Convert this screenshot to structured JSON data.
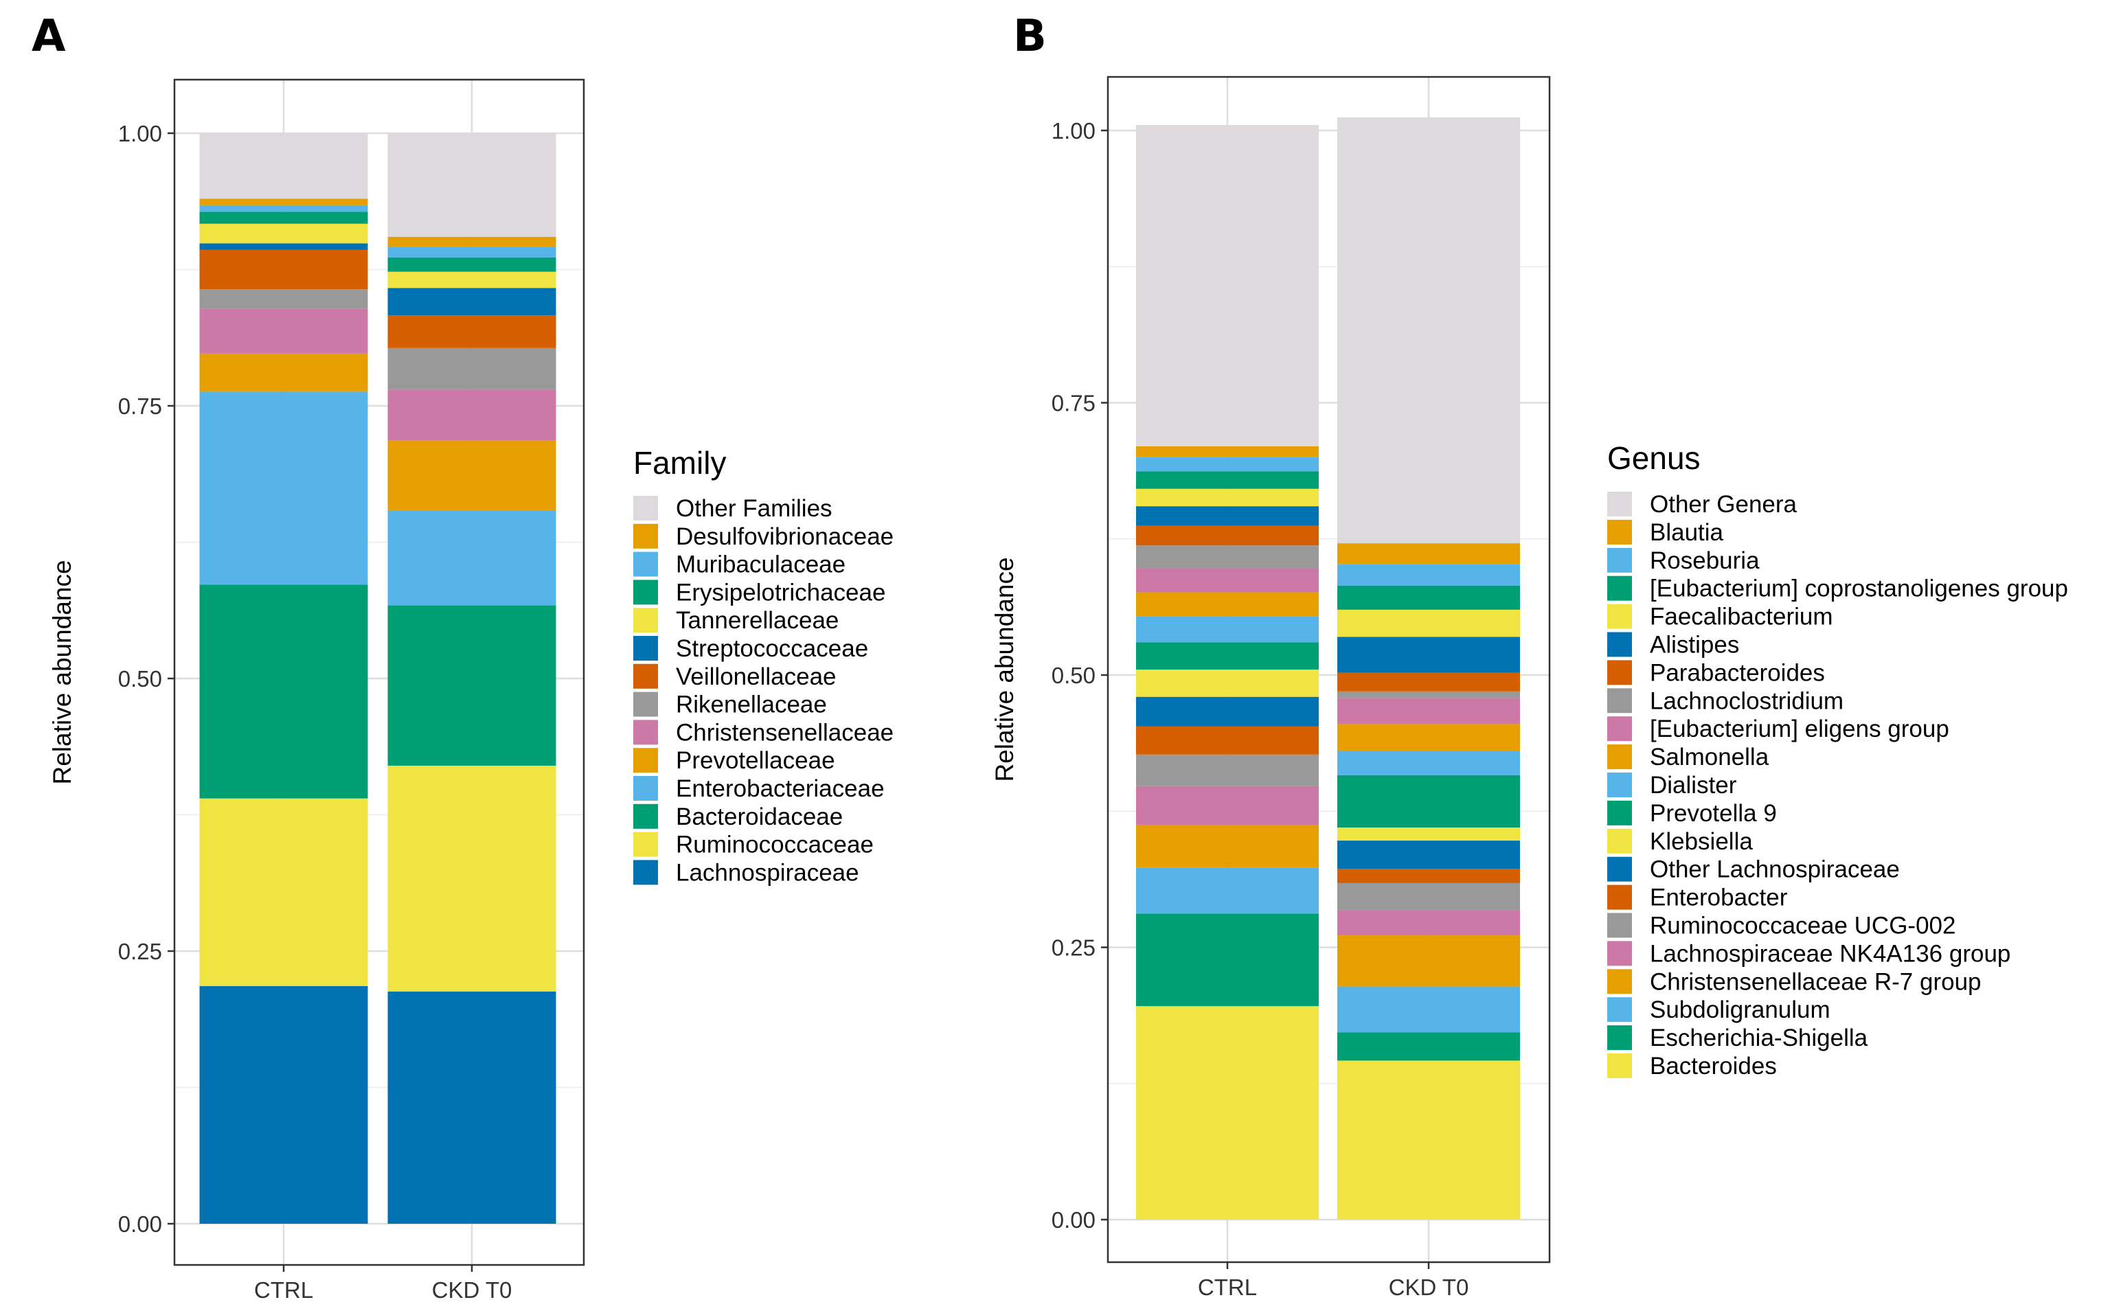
{
  "chart_data": [
    {
      "panel": "A",
      "type": "bar",
      "stacked": true,
      "categories": [
        "CTRL",
        "CKD T0"
      ],
      "ylabel": "Relative abundance",
      "xlabel": "",
      "ylim": [
        0,
        1
      ],
      "yticks": [
        "0.00",
        "0.25",
        "0.50",
        "0.75",
        "1.00"
      ],
      "ytick_values": [
        0,
        0.25,
        0.5,
        0.75,
        1.0
      ],
      "legend_title": "Family",
      "legend_position": "right",
      "series": [
        {
          "name": "Lachnospiraceae",
          "color": "#0072B2",
          "values": [
            0.218,
            0.213
          ]
        },
        {
          "name": "Ruminococcaceae",
          "color": "#F0E442",
          "values": [
            0.172,
            0.207
          ]
        },
        {
          "name": "Bacteroidaceae",
          "color": "#009E73",
          "values": [
            0.196,
            0.147
          ]
        },
        {
          "name": "Enterobacteriaceae",
          "color": "#56B4E9",
          "values": [
            0.177,
            0.087
          ]
        },
        {
          "name": "Prevotellaceae",
          "color": "#E69F00",
          "values": [
            0.035,
            0.064
          ]
        },
        {
          "name": "Christensenellaceae",
          "color": "#CC79A7",
          "values": [
            0.041,
            0.047
          ]
        },
        {
          "name": "Rikenellaceae",
          "color": "#999999",
          "values": [
            0.018,
            0.038
          ]
        },
        {
          "name": "Veillonellaceae",
          "color": "#D55E00",
          "values": [
            0.036,
            0.03
          ]
        },
        {
          "name": "Streptococcaceae",
          "color": "#0072B2",
          "values": [
            0.006,
            0.025
          ]
        },
        {
          "name": "Tannerellaceae",
          "color": "#F0E442",
          "values": [
            0.018,
            0.015
          ]
        },
        {
          "name": "Erysipelotrichaceae",
          "color": "#009E73",
          "values": [
            0.011,
            0.013
          ]
        },
        {
          "name": "Muribaculaceae",
          "color": "#56B4E9",
          "values": [
            0.006,
            0.01
          ]
        },
        {
          "name": "Desulfovibrionaceae",
          "color": "#E69F00",
          "values": [
            0.006,
            0.009
          ]
        },
        {
          "name": "Other Families",
          "color": "#DED9DC",
          "values": [
            0.06,
            0.095
          ]
        }
      ]
    },
    {
      "panel": "B",
      "type": "bar",
      "stacked": true,
      "categories": [
        "CTRL",
        "CKD T0"
      ],
      "ylabel": "Relative abundance",
      "xlabel": "",
      "ylim": [
        0,
        1
      ],
      "yticks": [
        "0.00",
        "0.25",
        "0.50",
        "0.75",
        "1.00"
      ],
      "ytick_values": [
        0,
        0.25,
        0.5,
        0.75,
        1.0
      ],
      "legend_title": "Genus",
      "legend_position": "right",
      "series": [
        {
          "name": "Bacteroides",
          "color": "#F0E442",
          "values": [
            0.196,
            0.146
          ]
        },
        {
          "name": "Escherichia-Shigella",
          "color": "#009E73",
          "values": [
            0.085,
            0.026
          ]
        },
        {
          "name": "Subdoligranulum",
          "color": "#56B4E9",
          "values": [
            0.042,
            0.042
          ]
        },
        {
          "name": "Christensenellaceae R-7 group",
          "color": "#E69F00",
          "values": [
            0.039,
            0.047
          ]
        },
        {
          "name": "Lachnospiraceae NK4A136 group",
          "color": "#CC79A7",
          "values": [
            0.036,
            0.023
          ]
        },
        {
          "name": "Ruminococcaceae UCG-002",
          "color": "#999999",
          "values": [
            0.029,
            0.025
          ]
        },
        {
          "name": "Enterobacter",
          "color": "#D55E00",
          "values": [
            0.026,
            0.013
          ]
        },
        {
          "name": "Other Lachnospiraceae",
          "color": "#0072B2",
          "values": [
            0.027,
            0.026
          ]
        },
        {
          "name": "Klebsiella",
          "color": "#F0E442",
          "values": [
            0.025,
            0.012
          ]
        },
        {
          "name": "Prevotella 9",
          "color": "#009E73",
          "values": [
            0.025,
            0.048
          ]
        },
        {
          "name": "Dialister",
          "color": "#56B4E9",
          "values": [
            0.024,
            0.022
          ]
        },
        {
          "name": "Salmonella",
          "color": "#E69F00",
          "values": [
            0.022,
            0.025
          ]
        },
        {
          "name": "[Eubacterium] eligens group",
          "color": "#CC79A7",
          "values": [
            0.022,
            0.024
          ]
        },
        {
          "name": "Lachnoclostridium",
          "color": "#999999",
          "values": [
            0.021,
            0.006
          ]
        },
        {
          "name": "Parabacteroides",
          "color": "#D55E00",
          "values": [
            0.018,
            0.017
          ]
        },
        {
          "name": "Alistipes",
          "color": "#0072B2",
          "values": [
            0.018,
            0.033
          ]
        },
        {
          "name": "Faecalibacterium",
          "color": "#F0E442",
          "values": [
            0.016,
            0.025
          ]
        },
        {
          "name": "[Eubacterium] coprostanoligenes group",
          "color": "#009E73",
          "values": [
            0.016,
            0.022
          ]
        },
        {
          "name": "Roseburia",
          "color": "#56B4E9",
          "values": [
            0.013,
            0.02
          ]
        },
        {
          "name": "Blautia",
          "color": "#E69F00",
          "values": [
            0.01,
            0.019
          ]
        },
        {
          "name": "Other Genera",
          "color": "#DED9DC",
          "values": [
            0.295,
            0.391
          ]
        }
      ]
    }
  ]
}
